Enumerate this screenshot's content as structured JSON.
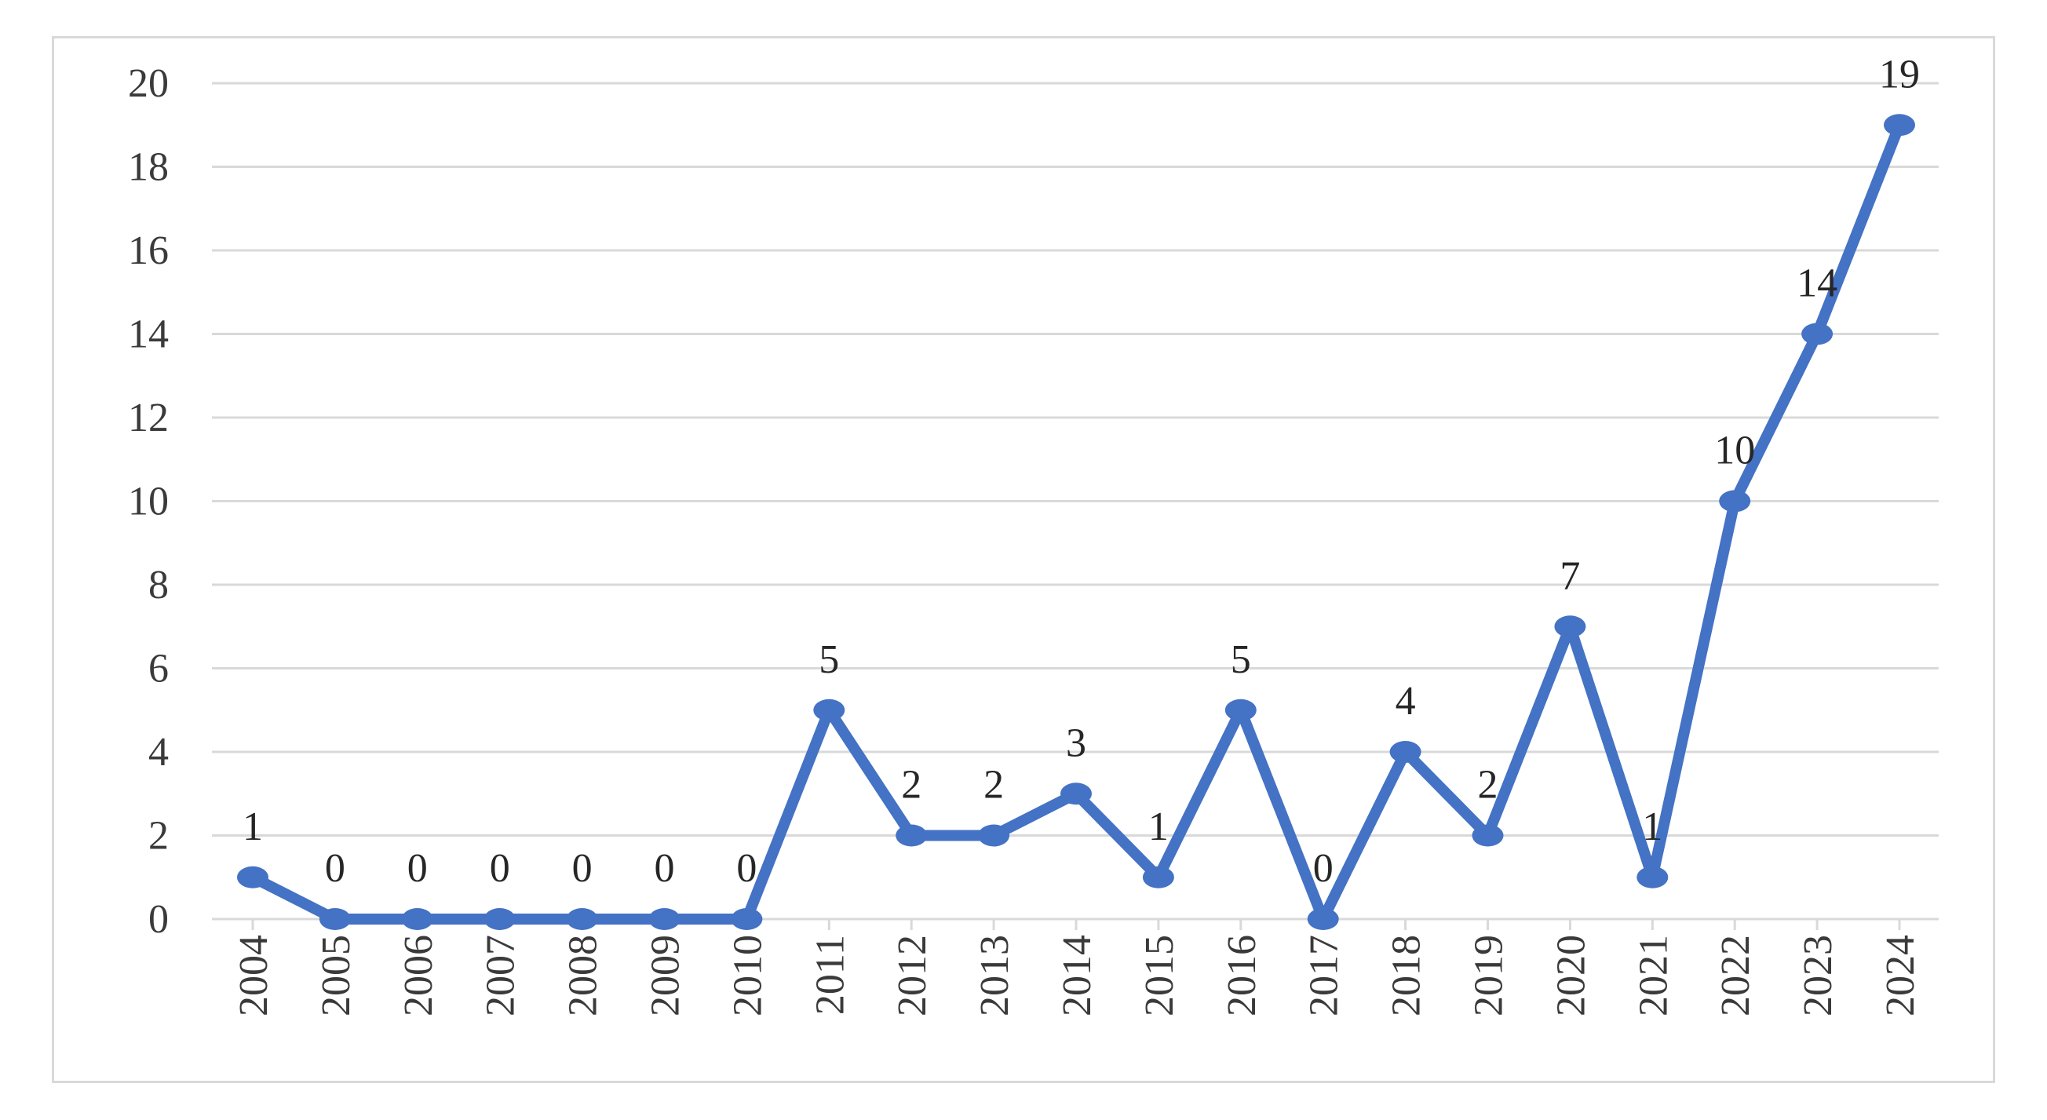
{
  "chart_data": {
    "type": "line",
    "title": "",
    "xlabel": "",
    "ylabel": "",
    "categories": [
      "2004",
      "2005",
      "2006",
      "2007",
      "2008",
      "2009",
      "2010",
      "2011",
      "2012",
      "2013",
      "2014",
      "2015",
      "2016",
      "2017",
      "2018",
      "2019",
      "2020",
      "2021",
      "2022",
      "2023",
      "2024"
    ],
    "series": [
      {
        "values": [
          1,
          0,
          0,
          0,
          0,
          0,
          0,
          5,
          2,
          2,
          3,
          1,
          5,
          0,
          4,
          2,
          7,
          1,
          10,
          14,
          19
        ]
      }
    ],
    "ylim": [
      0,
      20
    ],
    "yticks": [
      0,
      2,
      4,
      6,
      8,
      10,
      12,
      14,
      16,
      18,
      20
    ],
    "grid": true,
    "legend": "none",
    "data_labels": true,
    "x_tick_rotation": "vertical",
    "colors": {
      "line": "#4472c4",
      "grid": "#d9d9d9",
      "border": "#d9d9d9",
      "text": "#3a3a3a"
    }
  }
}
